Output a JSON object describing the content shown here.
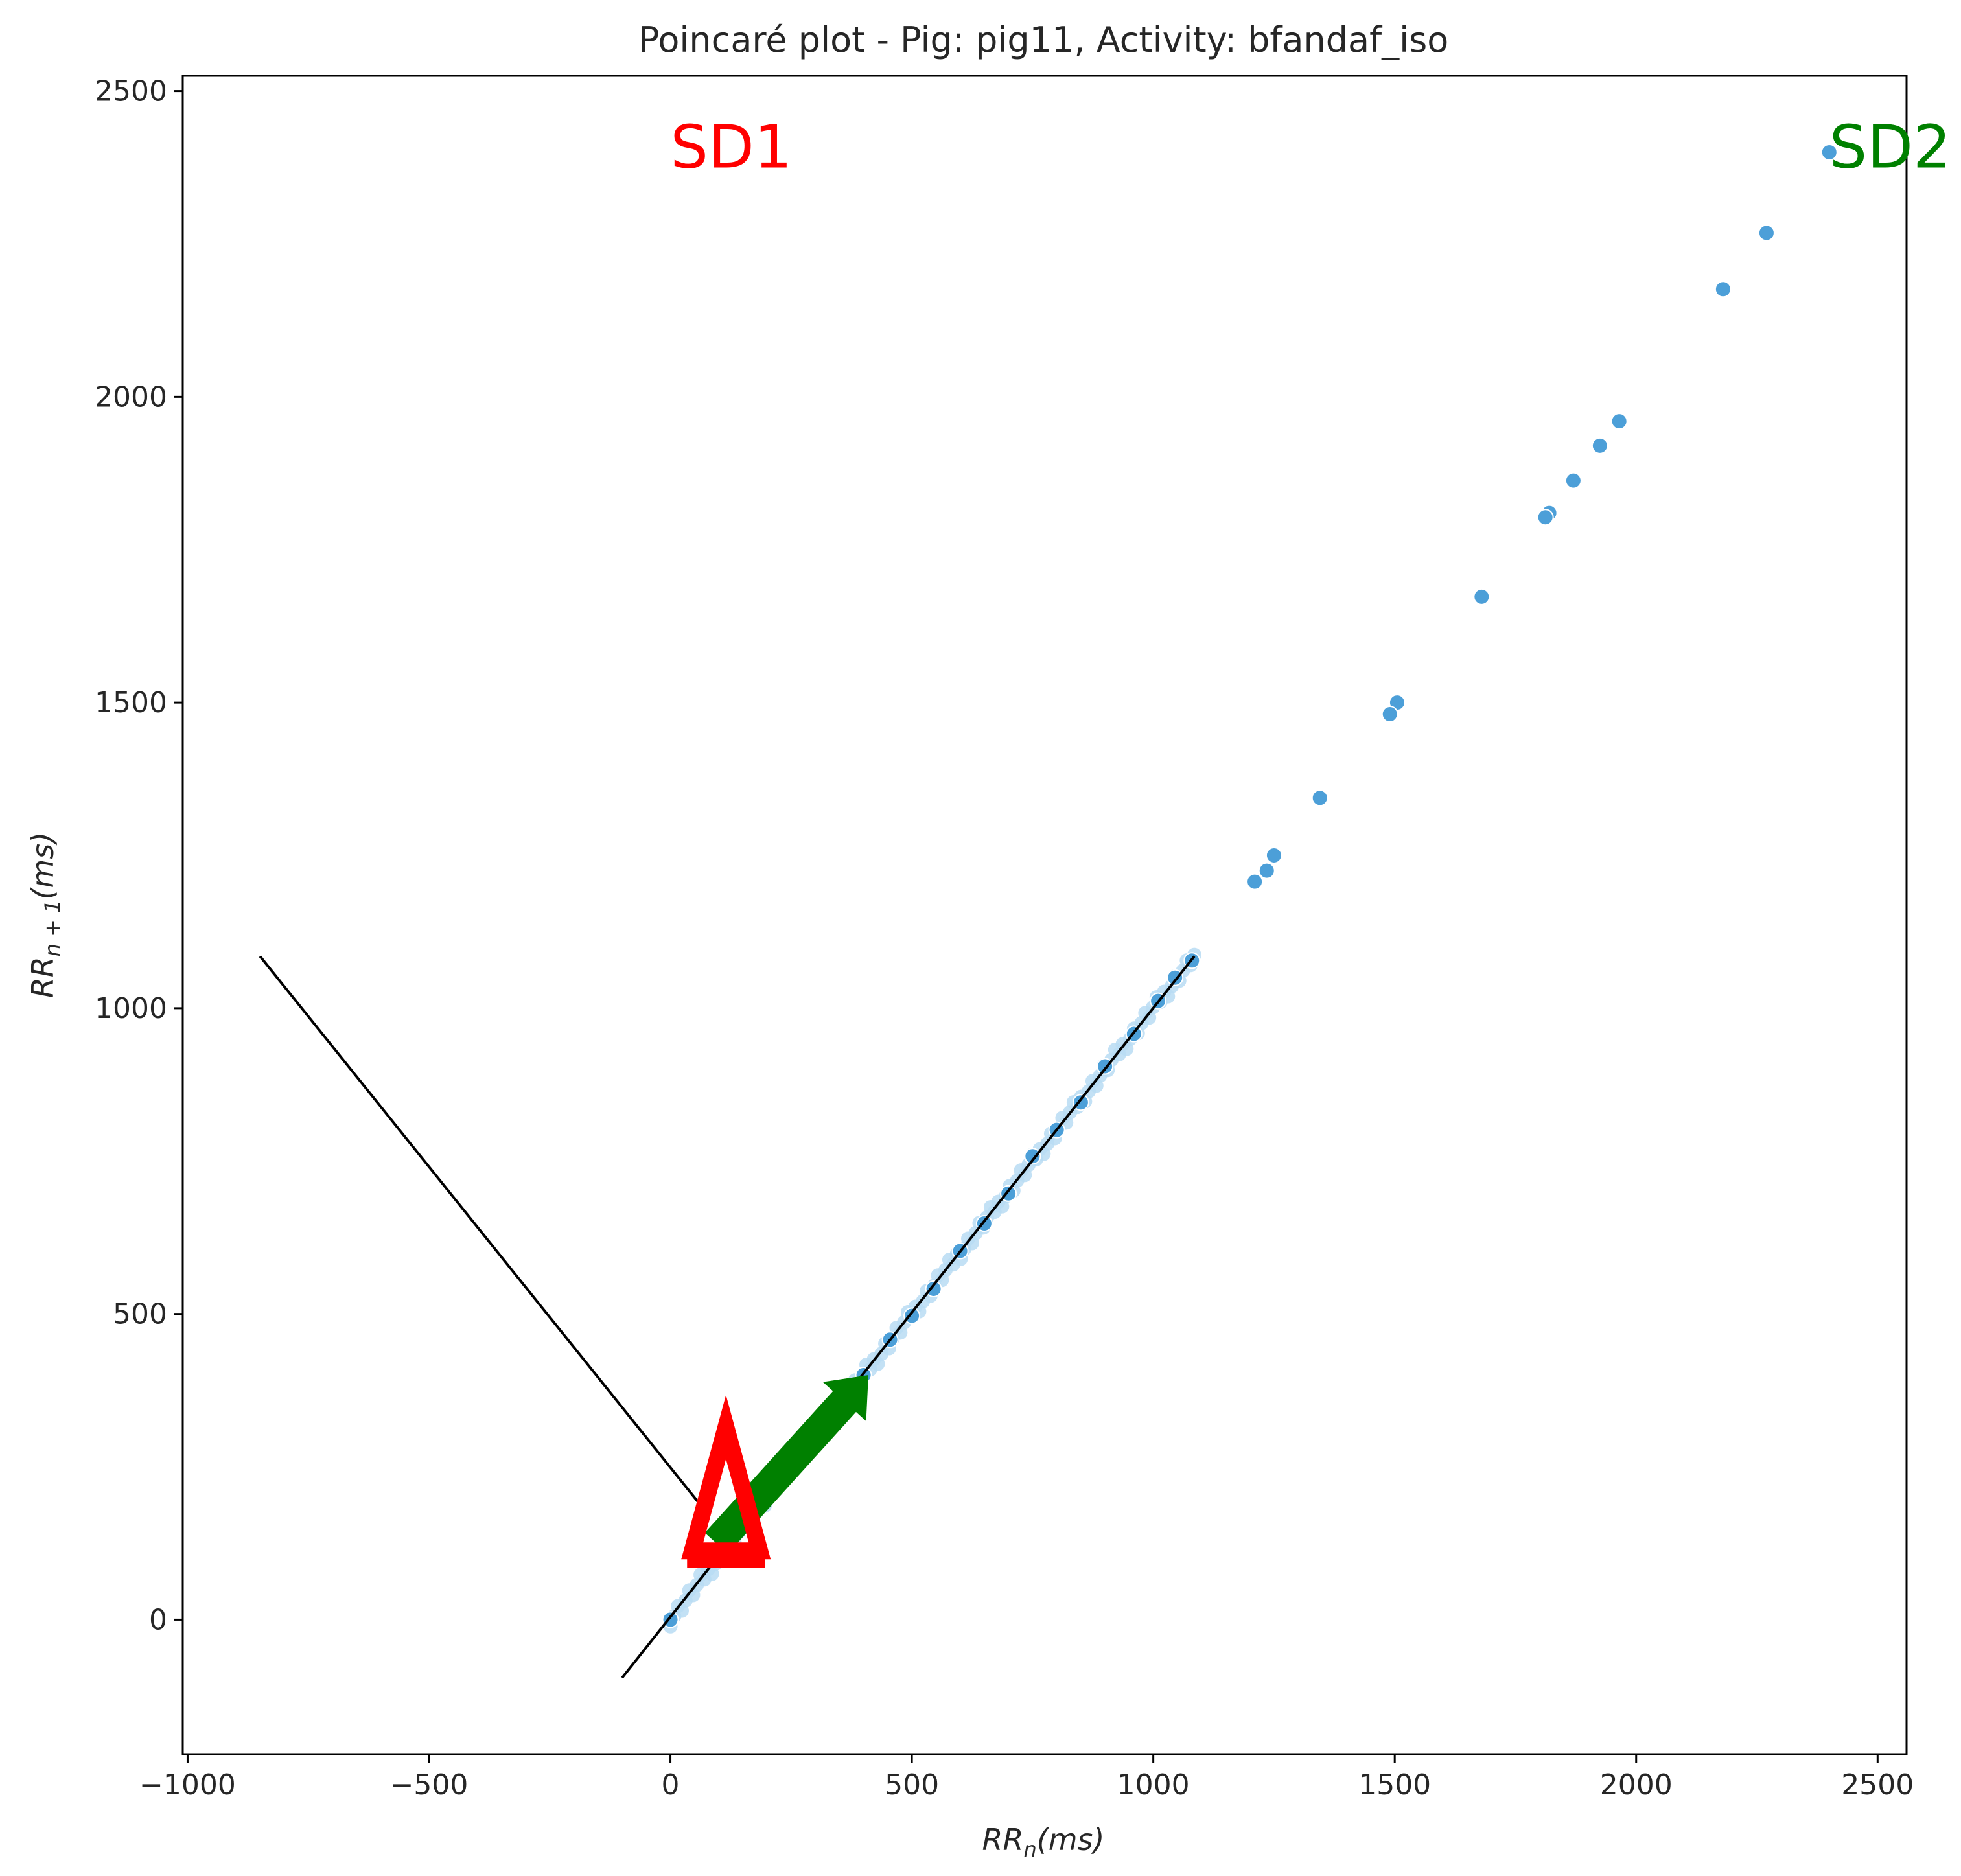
{
  "chart_data": {
    "type": "scatter",
    "title": "Poincaré plot - Pig: pig11, Activity: bfandaf_iso",
    "xlabel": {
      "base": "RR",
      "sub": "n",
      "unit": "(ms)"
    },
    "ylabel": {
      "base": "RR",
      "sub": "n + 1",
      "unit": "(ms)"
    },
    "xlim": [
      -1010,
      2560
    ],
    "ylim": [
      -220,
      2525
    ],
    "xticks": [
      -1000,
      -500,
      0,
      500,
      1000,
      1500,
      2000,
      2500
    ],
    "xtick_labels": [
      "−1000",
      "−500",
      "0",
      "500",
      "1000",
      "1500",
      "2000",
      "2500"
    ],
    "yticks": [
      0,
      500,
      1000,
      1500,
      2000,
      2500
    ],
    "ytick_labels": [
      "0",
      "500",
      "1000",
      "1500",
      "2000",
      "2500"
    ],
    "grid": false,
    "point_color": "#4c9fd8",
    "dense_cluster": {
      "x_from": 0,
      "x_to": 1085,
      "count": 140,
      "color": "#b9dcf3"
    },
    "points": [
      {
        "x": 2400,
        "y": 2400
      },
      {
        "x": 2270,
        "y": 2268
      },
      {
        "x": 2180,
        "y": 2176
      },
      {
        "x": 1965,
        "y": 1960
      },
      {
        "x": 1925,
        "y": 1920
      },
      {
        "x": 1870,
        "y": 1863
      },
      {
        "x": 1820,
        "y": 1810
      },
      {
        "x": 1812,
        "y": 1803
      },
      {
        "x": 1680,
        "y": 1673
      },
      {
        "x": 1505,
        "y": 1500
      },
      {
        "x": 1490,
        "y": 1481
      },
      {
        "x": 1345,
        "y": 1344
      },
      {
        "x": 1250,
        "y": 1250
      },
      {
        "x": 1235,
        "y": 1225
      },
      {
        "x": 1210,
        "y": 1207
      },
      {
        "x": 1080,
        "y": 1078
      },
      {
        "x": 1045,
        "y": 1050
      },
      {
        "x": 1010,
        "y": 1012
      },
      {
        "x": 960,
        "y": 958
      },
      {
        "x": 900,
        "y": 905
      },
      {
        "x": 850,
        "y": 846
      },
      {
        "x": 800,
        "y": 801
      },
      {
        "x": 750,
        "y": 758
      },
      {
        "x": 700,
        "y": 697
      },
      {
        "x": 650,
        "y": 648
      },
      {
        "x": 600,
        "y": 603
      },
      {
        "x": 545,
        "y": 541
      },
      {
        "x": 500,
        "y": 497
      },
      {
        "x": 455,
        "y": 458
      },
      {
        "x": 400,
        "y": 400
      },
      {
        "x": 0,
        "y": 0
      }
    ],
    "lines": [
      {
        "x1": -100,
        "y1": -95,
        "x2": 1085,
        "y2": 1085,
        "color": "#000000"
      },
      {
        "x1": -850,
        "y1": 1085,
        "x2": 75,
        "y2": 175,
        "color": "#000000"
      }
    ],
    "arrows": [
      {
        "name": "SD2",
        "color": "#008000",
        "x_from": 95,
        "y_from": 125,
        "x_to": 410,
        "y_to": 400
      },
      {
        "name": "SD1",
        "color": "#ff0000",
        "x_base": 115,
        "y_base": 85,
        "x_tip": 115,
        "y_tip": 315
      }
    ],
    "annotations": [
      {
        "text": "SD1",
        "x": 0,
        "y": 2375,
        "color": "#ff0000"
      },
      {
        "text": "SD2",
        "x": 2400,
        "y": 2375,
        "color": "#008000"
      }
    ]
  }
}
